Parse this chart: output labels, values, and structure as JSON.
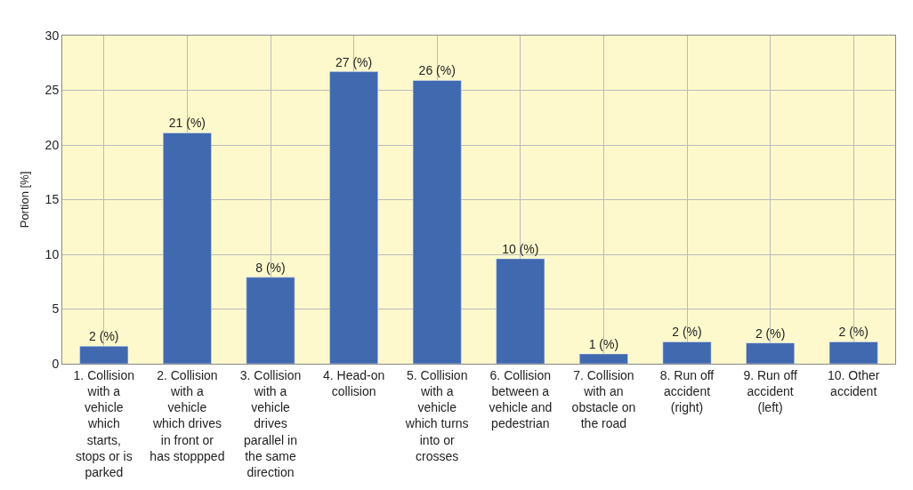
{
  "chart_data": {
    "type": "bar",
    "ylabel": "Portion [%]",
    "categories": [
      "1. Collision with a vehicle which starts, stops or is parked",
      "2. Collision with a vehicle which drives in front or has stoppped",
      "3. Collision with a vehicle drives parallel in the same direction",
      "4. Head-on collision",
      "5. Collision with a vehicle which turns into or crosses",
      "6. Collision between a vehicle and pedestrian",
      "7. Collision with an obstacle on the road",
      "8. Run off accident (right)",
      "9. Run off accident (left)",
      "10. Other accident"
    ],
    "values": [
      1.6,
      21.1,
      7.9,
      26.7,
      25.9,
      9.6,
      0.9,
      2.0,
      1.9,
      2.0
    ],
    "value_labels": [
      "2 (%)",
      "21 (%)",
      "8 (%)",
      "27 (%)",
      "26 (%)",
      "10 (%)",
      "1 (%)",
      "2 (%)",
      "2 (%)",
      "2 (%)"
    ],
    "color": "#4169b0",
    "ylim": [
      0,
      30
    ],
    "yticks": [
      0,
      5,
      10,
      15,
      20,
      25,
      30
    ],
    "grid": true,
    "legend": false
  }
}
